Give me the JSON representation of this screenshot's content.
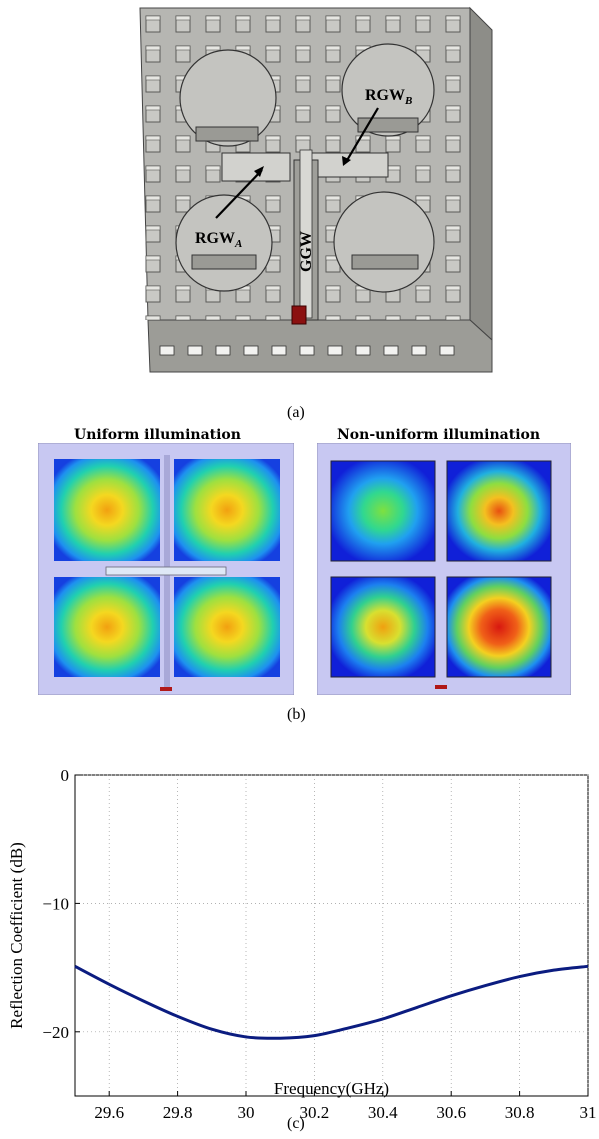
{
  "panel_a": {
    "caption": "(a)",
    "labels": {
      "rgw_a": "RGW",
      "rgw_a_sub": "A",
      "rgw_b": "RGW",
      "rgw_b_sub": "B",
      "ggw": "GGW"
    }
  },
  "panel_b": {
    "caption": "(b)",
    "left_title": "Uniform illumination",
    "right_title": "Non-uniform illumination"
  },
  "panel_c": {
    "caption": "(c)"
  },
  "chart_data": {
    "type": "line",
    "xlabel": "Frequency(GHz)",
    "ylabel": "Reflection Coefficient (dB)",
    "xlim": [
      29.5,
      31
    ],
    "ylim": [
      -25,
      0
    ],
    "xticks": [
      29.6,
      29.8,
      30,
      30.2,
      30.4,
      30.6,
      30.8,
      31
    ],
    "xtick_labels": [
      "29.6",
      "29.8",
      "30",
      "30.2",
      "30.4",
      "30.6",
      "30.8",
      "31"
    ],
    "yticks": [
      0,
      -10,
      -20
    ],
    "ytick_labels": [
      "0",
      "−10",
      "−20"
    ],
    "grid": true,
    "series": [
      {
        "color": "#0b1c80",
        "x": [
          29.5,
          29.6,
          29.7,
          29.8,
          29.9,
          30.0,
          30.1,
          30.2,
          30.3,
          30.4,
          30.5,
          30.6,
          30.7,
          30.8,
          30.9,
          31.0
        ],
        "y": [
          -14.9,
          -16.3,
          -17.6,
          -18.8,
          -19.8,
          -20.4,
          -20.5,
          -20.3,
          -19.7,
          -19.0,
          -18.1,
          -17.2,
          -16.4,
          -15.7,
          -15.2,
          -14.9
        ]
      }
    ]
  }
}
